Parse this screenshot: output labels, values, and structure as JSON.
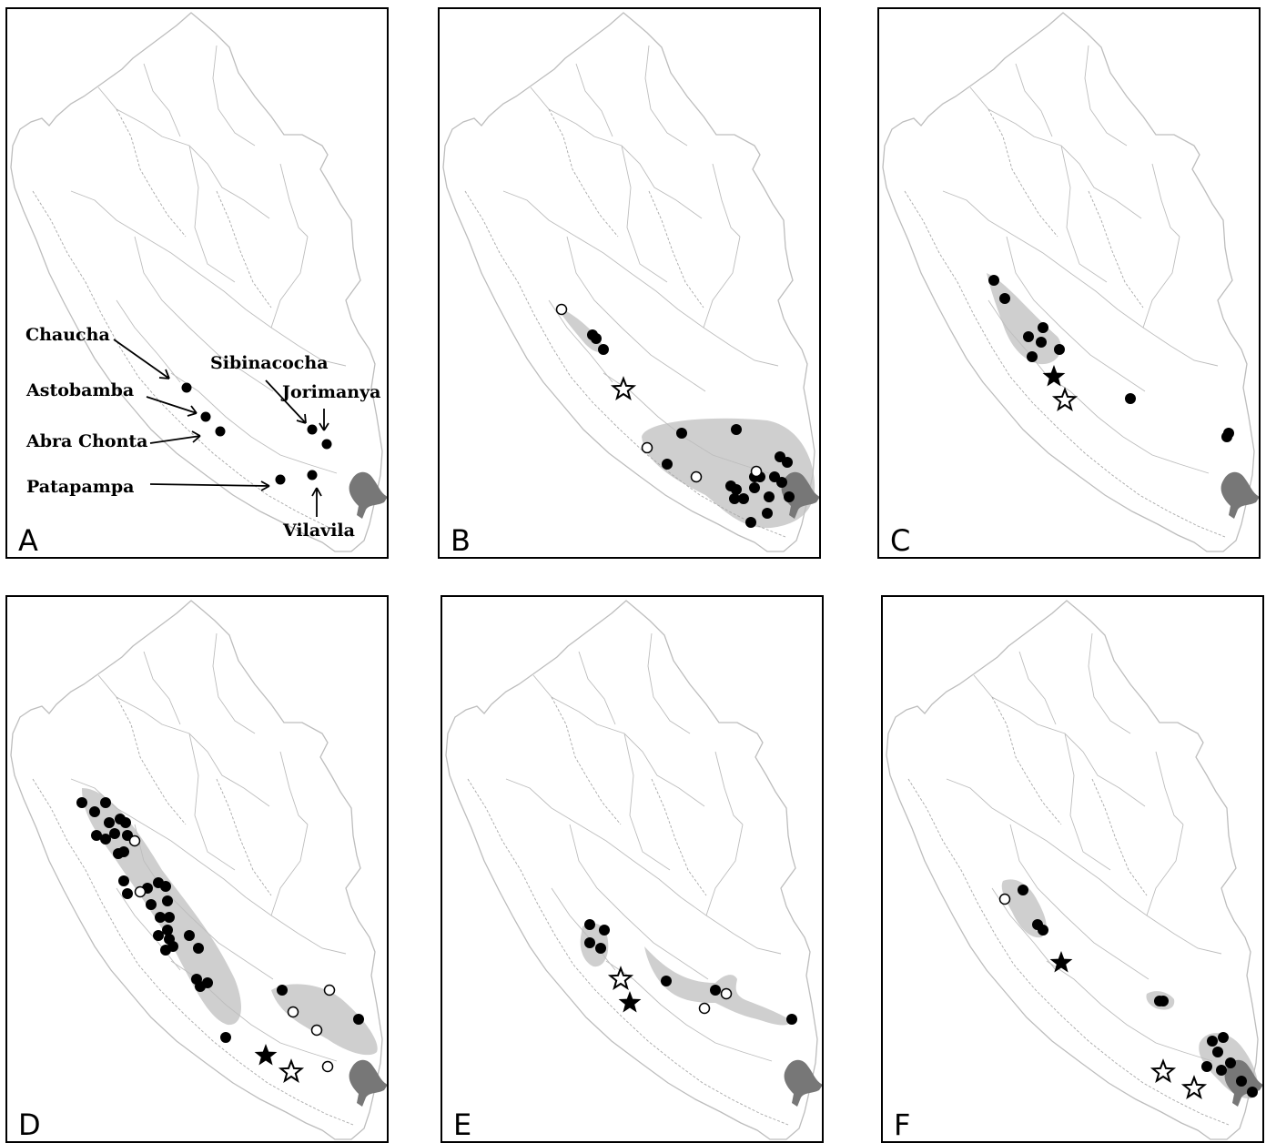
{
  "panels": [
    {
      "id": "A",
      "letter": "A"
    },
    {
      "id": "B",
      "letter": "B"
    },
    {
      "id": "C",
      "letter": "C"
    },
    {
      "id": "D",
      "letter": "D"
    },
    {
      "id": "E",
      "letter": "E"
    },
    {
      "id": "F",
      "letter": "F"
    }
  ],
  "site_labels": {
    "chaucha": "Chaucha",
    "astobamba": "Astobamba",
    "abra_chonta": "Abra Chonta",
    "patapampa": "Patapampa",
    "sibinacocha": "Sibinacocha",
    "jorimanya": "Jorimanya",
    "vilavila": "Vilavila"
  },
  "colors": {
    "range_fill": "#cfcfcf",
    "lake_fill": "#777777",
    "border_line": "#bdbdbd",
    "dashed_line": "#a8a8a8",
    "marker": "#000000"
  }
}
